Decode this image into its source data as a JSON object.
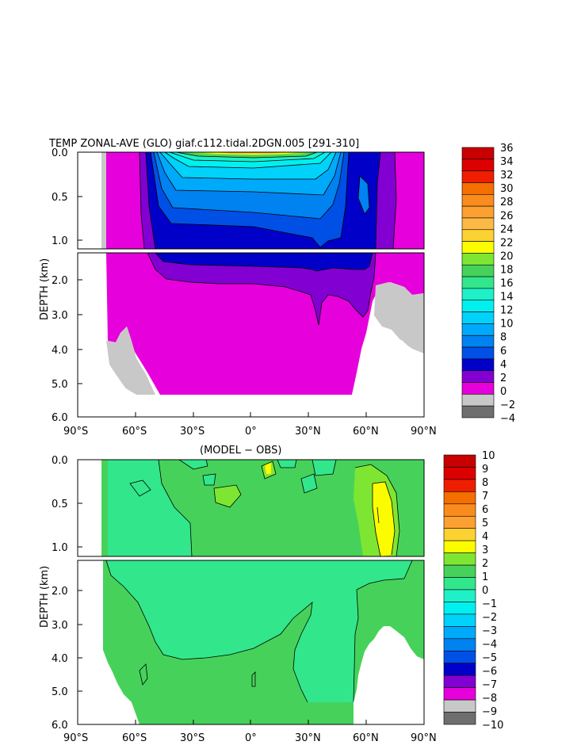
{
  "colorbars": {
    "temp": {
      "labels": [
        "36",
        "34",
        "32",
        "30",
        "28",
        "26",
        "24",
        "22",
        "20",
        "18",
        "16",
        "14",
        "12",
        "10",
        "8",
        "6",
        "4",
        "2",
        "0",
        "−2",
        "−4"
      ],
      "colors": [
        "#c80000",
        "#dc0000",
        "#f01e00",
        "#f56e00",
        "#fa8c1e",
        "#fca032",
        "#fcb946",
        "#fcd232",
        "#fcfc00",
        "#7ee632",
        "#46d25a",
        "#32e68c",
        "#1ef0c8",
        "#00f0f0",
        "#00d2fa",
        "#00aafa",
        "#0082f0",
        "#0050e6",
        "#0000c8",
        "#8200d2",
        "#e600dc",
        "#c8c8c8",
        "#6e6e6e"
      ]
    },
    "diff": {
      "labels": [
        "10",
        "9",
        "8",
        "7",
        "6",
        "5",
        "4",
        "3",
        "2",
        "1",
        "0",
        "−1",
        "−2",
        "−3",
        "−4",
        "−5",
        "−6",
        "−7",
        "−8",
        "−9",
        "−10"
      ],
      "colors": [
        "#c80000",
        "#dc0000",
        "#f01e00",
        "#f56e00",
        "#fa8c1e",
        "#fca032",
        "#fcd232",
        "#fcfc00",
        "#7ee632",
        "#46d25a",
        "#32e68c",
        "#1ef0c8",
        "#00f0f0",
        "#00d2fa",
        "#00aafa",
        "#0082f0",
        "#0050e6",
        "#0000c8",
        "#8200d2",
        "#e600dc",
        "#c8c8c8",
        "#6e6e6e"
      ]
    }
  },
  "chart_data": [
    {
      "type": "heatmap",
      "title": "TEMP ZONAL-AVE (GLO) giaf.c112.tidal.2DGN.005 [291-310]",
      "ylabel": "DEPTH (km)",
      "xlim": [
        -90,
        90
      ],
      "ylim": [
        6.0,
        0.0
      ],
      "x_ticks": [
        "90°S",
        "60°S",
        "30°S",
        "0°",
        "30°N",
        "60°N",
        "90°N"
      ],
      "y_ticks_upper": [
        "0.0",
        "0.5",
        "1.0"
      ],
      "y_ticks_lower": [
        "2.0",
        "3.0",
        "4.0",
        "5.0",
        "6.0"
      ],
      "levels": [
        -4,
        -2,
        0,
        2,
        4,
        6,
        8,
        10,
        12,
        14,
        16,
        18,
        20,
        22,
        24,
        26,
        28,
        30,
        32,
        34,
        36
      ]
    },
    {
      "type": "heatmap",
      "title": "(MODEL − OBS)",
      "ylabel": "DEPTH (km)",
      "xlim": [
        -90,
        90
      ],
      "ylim": [
        6.0,
        0.0
      ],
      "x_ticks": [
        "90°S",
        "60°S",
        "30°S",
        "0°",
        "30°N",
        "60°N",
        "90°N"
      ],
      "y_ticks_upper": [
        "0.0",
        "0.5",
        "1.0"
      ],
      "y_ticks_lower": [
        "2.0",
        "3.0",
        "4.0",
        "5.0",
        "6.0"
      ],
      "levels": [
        -10,
        -9,
        -8,
        -7,
        -6,
        -5,
        -4,
        -3,
        -2,
        -1,
        0,
        1,
        2,
        3,
        4,
        5,
        6,
        7,
        8,
        9,
        10
      ]
    }
  ]
}
